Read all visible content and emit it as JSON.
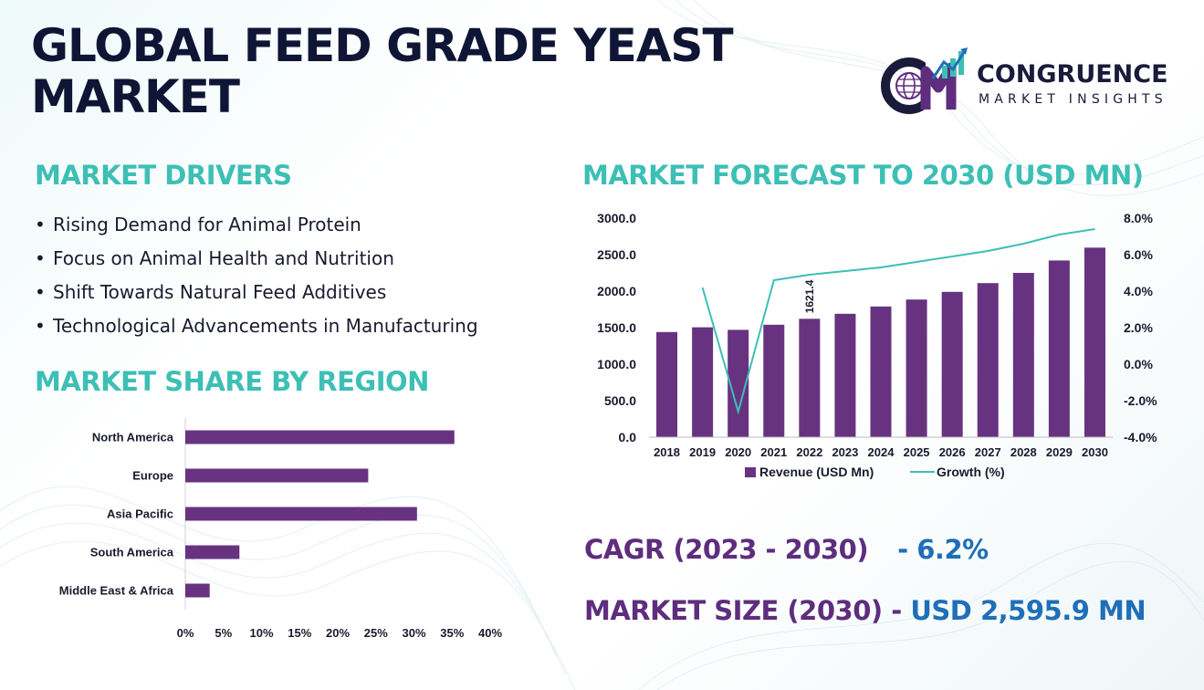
{
  "header": {
    "title_line1": "GLOBAL FEED GRADE YEAST",
    "title_line2": "MARKET"
  },
  "logo": {
    "icon": "cm-globe-chart-logo-icon",
    "name": "CONGRUENCE",
    "tagline": "MARKET INSIGHTS"
  },
  "drivers": {
    "heading": "MARKET DRIVERS",
    "bullet": "•",
    "items": [
      "Rising Demand for Animal Protein",
      "Focus on Animal Health and Nutrition",
      "Shift Towards Natural Feed Additives",
      "Technological Advancements in Manufacturing"
    ]
  },
  "region": {
    "heading": "MARKET SHARE BY REGION"
  },
  "forecast": {
    "heading": "MARKET FORECAST TO 2030 (USD MN)"
  },
  "kpis": {
    "cagr_label": "CAGR (2023 - 2030)",
    "cagr_value": "- 6.2%",
    "size_label": "MARKET SIZE (2030)",
    "size_sep": " - ",
    "size_value": "USD 2,595.9 MN"
  },
  "colors": {
    "bar": "#673380",
    "line": "#3dbfb5",
    "heading": "#3dbfb5",
    "title": "#0f1534",
    "kpi_label": "#5e2d7e",
    "kpi_value": "#1f6fb8"
  },
  "chart_data": [
    {
      "type": "bar",
      "orientation": "horizontal",
      "title": "",
      "categories": [
        "North America",
        "Europe",
        "Asia Pacific",
        "South America",
        "Middle East & Africa"
      ],
      "values": [
        35.3,
        24.0,
        30.4,
        7.1,
        3.2
      ],
      "xlim": [
        0,
        40
      ],
      "x_ticks": [
        "0%",
        "5%",
        "10%",
        "15%",
        "20%",
        "25%",
        "30%",
        "35%",
        "40%"
      ],
      "grid": false,
      "legend": "none"
    },
    {
      "type": "bar+line",
      "categories": [
        "2018",
        "2019",
        "2020",
        "2021",
        "2022",
        "2023",
        "2024",
        "2025",
        "2026",
        "2027",
        "2028",
        "2029",
        "2030"
      ],
      "series": [
        {
          "name": "Revenue (USD Mn)",
          "type": "bar",
          "axis": "left",
          "values": [
            1440,
            1505,
            1470,
            1540,
            1621.4,
            1690,
            1790,
            1885,
            1990,
            2110,
            2250,
            2420,
            2595.9
          ]
        },
        {
          "name": "Growth (%)",
          "type": "line",
          "axis": "right",
          "values": [
            null,
            4.2,
            -2.6,
            4.6,
            4.9,
            5.1,
            5.3,
            5.6,
            5.9,
            6.2,
            6.6,
            7.1,
            7.4
          ]
        }
      ],
      "data_labels": [
        {
          "category": "2022",
          "text": "1621.4"
        }
      ],
      "y_left": {
        "lim": [
          0,
          3000
        ],
        "ticks": [
          "0.0",
          "500.0",
          "1000.0",
          "1500.0",
          "2000.0",
          "2500.0",
          "3000.0"
        ]
      },
      "y_right": {
        "lim": [
          -4,
          8
        ],
        "ticks": [
          "-4.0%",
          "-2.0%",
          "0.0%",
          "2.0%",
          "4.0%",
          "6.0%",
          "8.0%"
        ]
      },
      "grid": false,
      "legend": "bottom"
    }
  ]
}
